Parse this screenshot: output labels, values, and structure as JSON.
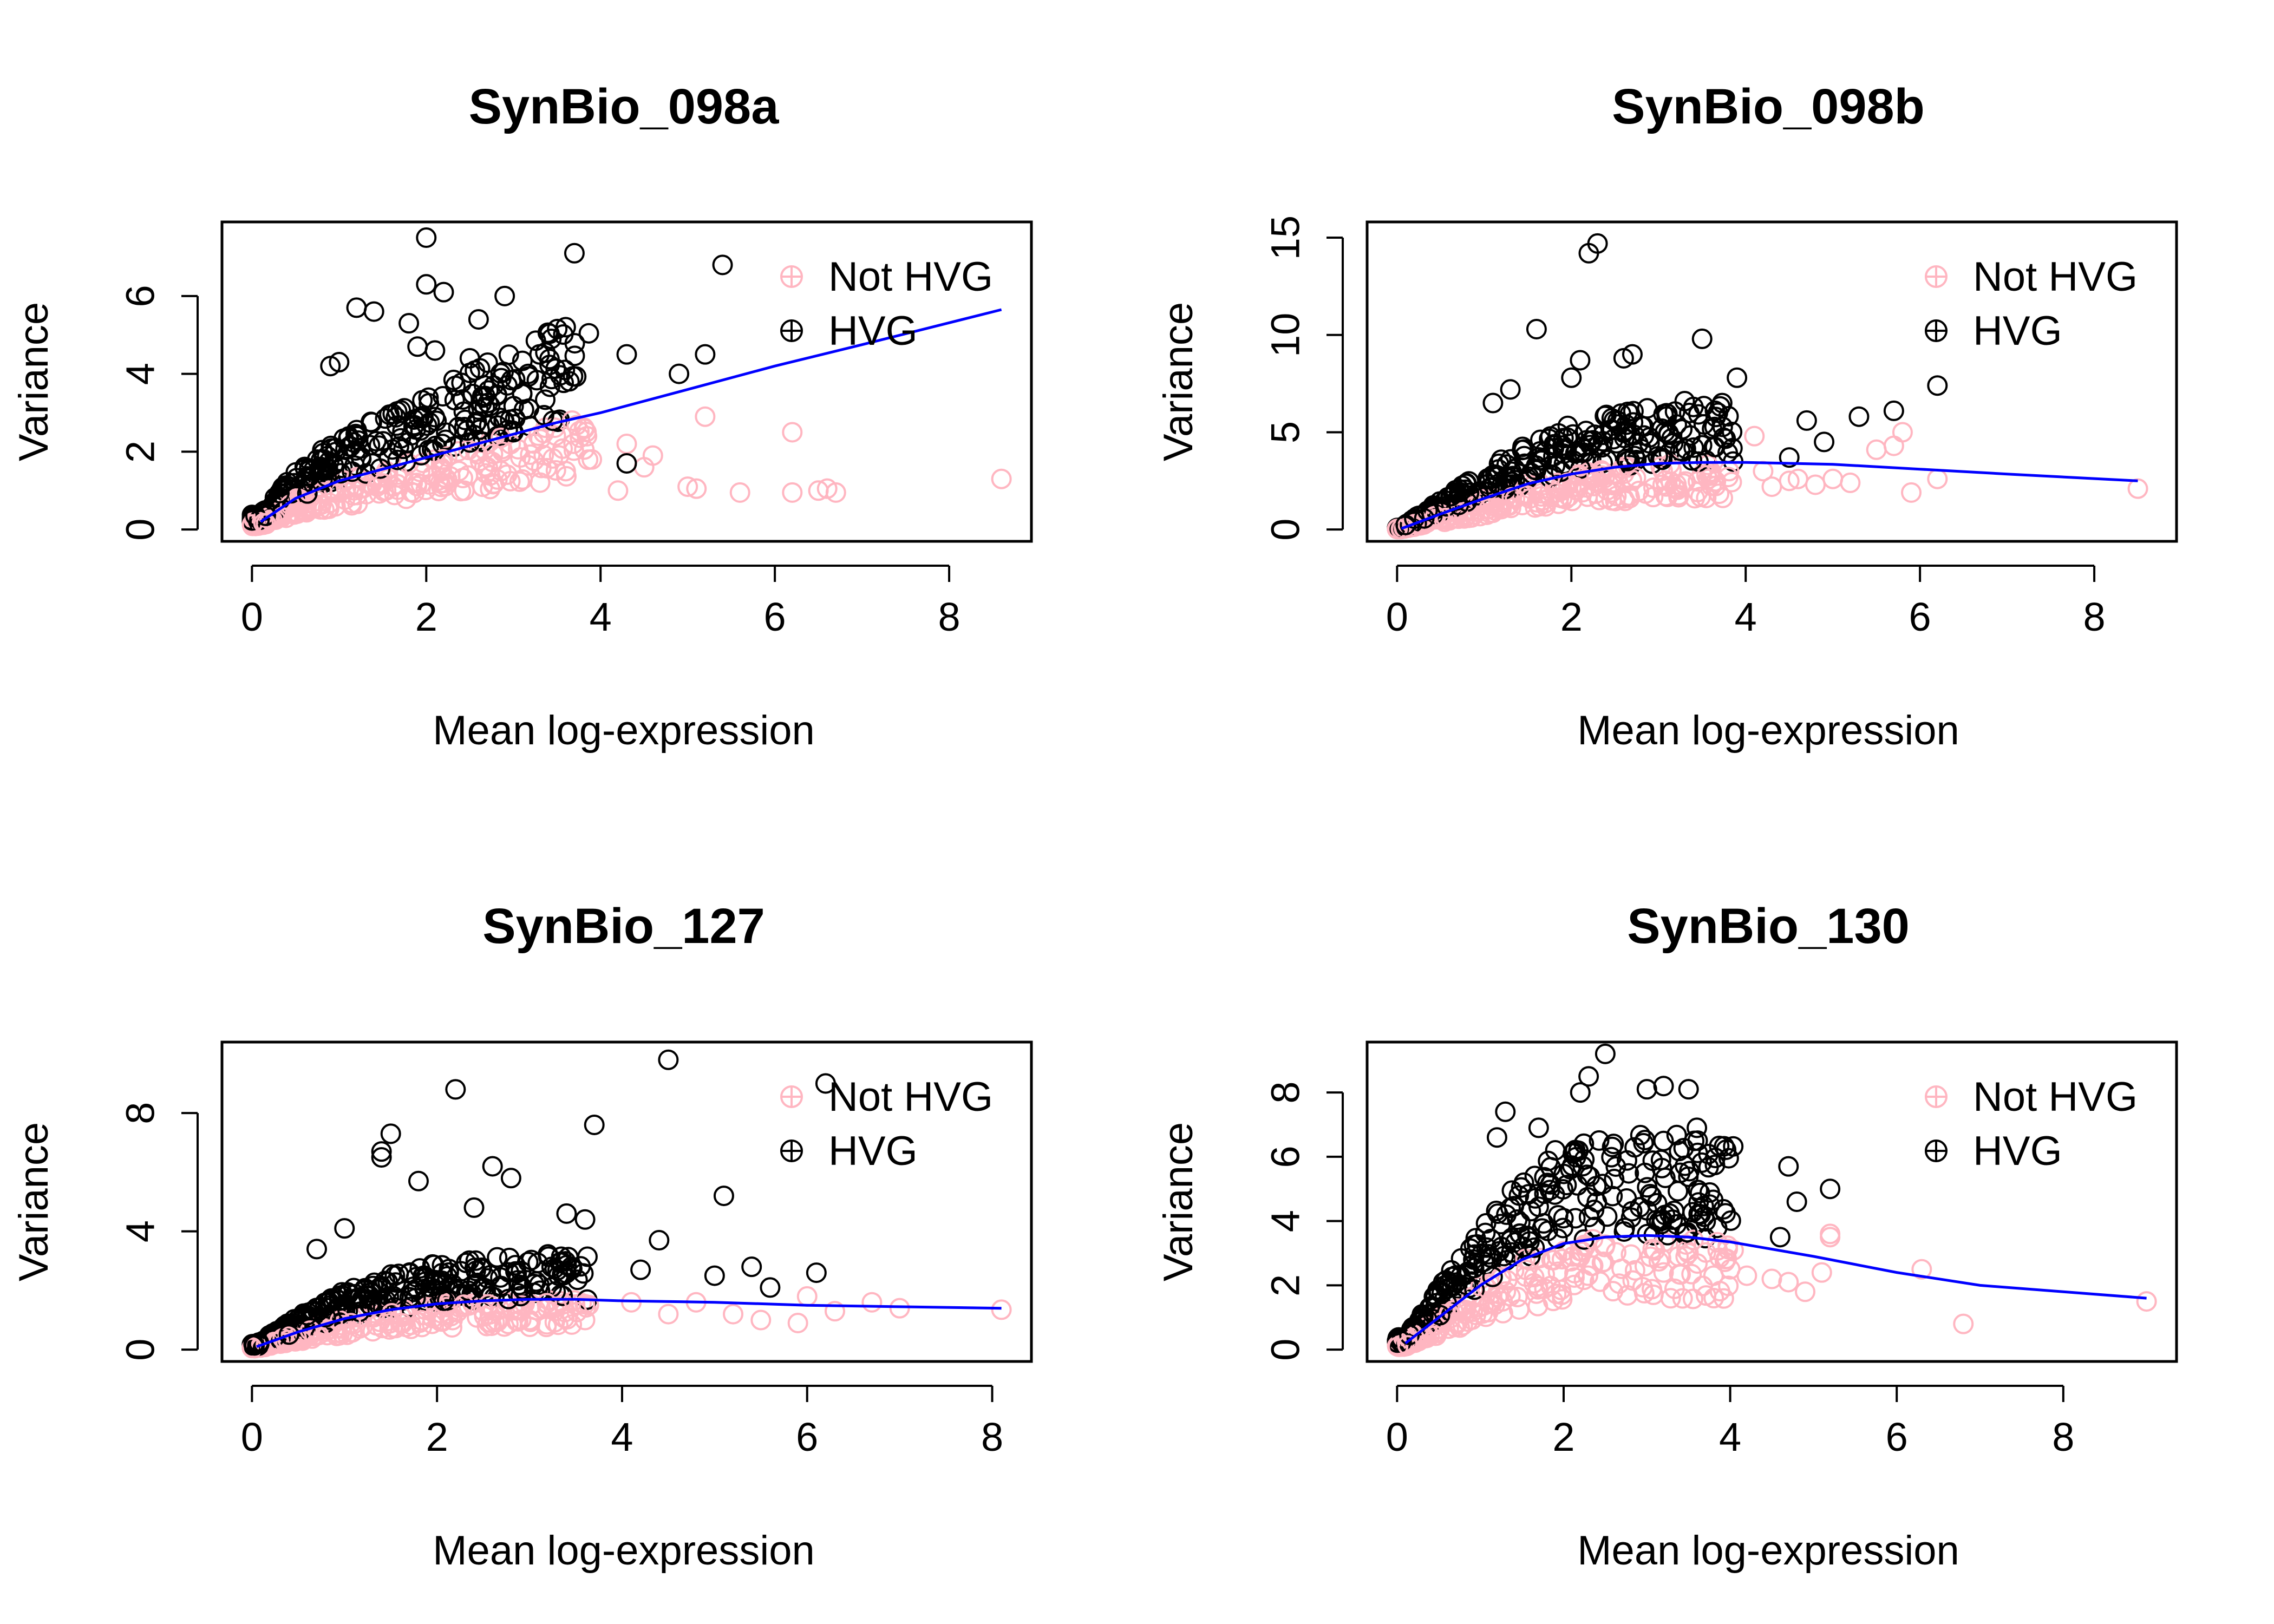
{
  "figure": {
    "background": "#ffffff"
  },
  "chart_data": [
    {
      "type": "scatter",
      "title": "SynBio_098a",
      "xlabel": "Mean log-expression",
      "ylabel": "Variance",
      "xlim": [
        0,
        8.6
      ],
      "ylim": [
        0,
        7.6
      ],
      "xticks": [
        0,
        2,
        4,
        6,
        8
      ],
      "yticks": [
        0,
        2,
        4,
        6
      ],
      "legend": {
        "position": "top-right",
        "entries": [
          "Not HVG",
          "HVG"
        ]
      },
      "colors": {
        "not_hvg": "#ffb6c1",
        "hvg": "#000000",
        "trend": "#0000ff"
      },
      "trend": {
        "x": [
          0.1,
          0.5,
          1,
          1.5,
          2,
          2.5,
          3,
          3.5,
          4,
          5,
          6,
          7,
          8.6
        ],
        "y": [
          0.2,
          0.8,
          1.25,
          1.55,
          1.85,
          2.15,
          2.45,
          2.75,
          3.0,
          3.6,
          4.2,
          4.75,
          5.65
        ]
      },
      "series": [
        {
          "name": "Not HVG",
          "x": [
            4.2,
            4.5,
            5.0,
            5.1,
            5.6,
            6.2,
            6.2,
            6.5,
            6.6,
            6.7,
            8.6,
            4.6,
            3.9,
            5.2,
            4.3,
            3.6
          ],
          "y": [
            1.0,
            1.6,
            1.1,
            1.05,
            0.95,
            2.5,
            0.95,
            1.0,
            1.05,
            0.95,
            1.3,
            1.9,
            1.8,
            2.9,
            2.2,
            1.5
          ]
        },
        {
          "name": "HVG",
          "x": [
            2.0,
            3.7,
            5.4,
            2.0,
            2.2,
            2.9,
            1.2,
            1.4,
            1.8,
            1.9,
            2.1,
            2.5,
            1.0,
            0.9,
            3.3,
            3.6,
            2.6,
            4.3,
            5.2,
            4.9,
            4.3,
            3.1,
            3.0
          ],
          "y": [
            7.5,
            7.1,
            6.8,
            6.3,
            6.1,
            6.0,
            5.7,
            5.6,
            5.3,
            4.7,
            4.6,
            4.4,
            4.3,
            4.2,
            4.5,
            5.2,
            5.4,
            4.5,
            4.5,
            4.0,
            1.7,
            3.5,
            2.5
          ]
        }
      ]
    },
    {
      "type": "scatter",
      "title": "SynBio_098b",
      "xlabel": "Mean log-expression",
      "ylabel": "Variance",
      "xlim": [
        0,
        8.6
      ],
      "ylim": [
        0,
        15.2
      ],
      "xticks": [
        0,
        2,
        4,
        6,
        8
      ],
      "yticks": [
        0,
        5,
        10,
        15
      ],
      "legend": {
        "position": "top-right",
        "entries": [
          "Not HVG",
          "HVG"
        ]
      },
      "colors": {
        "not_hvg": "#ffb6c1",
        "hvg": "#000000",
        "trend": "#0000ff"
      },
      "trend": {
        "x": [
          0.05,
          0.5,
          1,
          1.5,
          2,
          2.5,
          3,
          3.5,
          4,
          5,
          6,
          7,
          8.5
        ],
        "y": [
          0.05,
          0.8,
          1.6,
          2.35,
          2.85,
          3.2,
          3.4,
          3.45,
          3.45,
          3.35,
          3.1,
          2.85,
          2.5
        ]
      },
      "series": [
        {
          "name": "Not HVG",
          "x": [
            4.2,
            4.5,
            4.8,
            5.0,
            5.2,
            5.5,
            5.7,
            5.8,
            5.9,
            6.2,
            8.5,
            3.8,
            4.1,
            4.3,
            4.6
          ],
          "y": [
            3.0,
            2.5,
            2.3,
            2.6,
            2.4,
            4.1,
            4.3,
            5.0,
            1.9,
            2.6,
            2.1,
            2.7,
            4.8,
            2.2,
            2.6
          ]
        },
        {
          "name": "HVG",
          "x": [
            2.2,
            2.3,
            1.6,
            2.6,
            2.7,
            3.5,
            3.9,
            6.2,
            5.7,
            5.3,
            4.7,
            3.3,
            3.4,
            2.1,
            1.3,
            1.1,
            2.0,
            4.9,
            4.5
          ],
          "y": [
            14.2,
            14.7,
            10.3,
            8.8,
            9.0,
            9.8,
            7.8,
            7.4,
            6.1,
            5.8,
            5.6,
            6.6,
            6.3,
            8.7,
            7.2,
            6.5,
            7.8,
            4.5,
            3.7
          ]
        }
      ]
    },
    {
      "type": "scatter",
      "title": "SynBio_127",
      "xlabel": "Mean log-expression",
      "ylabel": "Variance",
      "xlim": [
        0,
        8.1
      ],
      "ylim": [
        0,
        10
      ],
      "xticks": [
        0,
        2,
        4,
        6,
        8
      ],
      "yticks": [
        0,
        4,
        8
      ],
      "legend": {
        "position": "top-right",
        "entries": [
          "Not HVG",
          "HVG"
        ]
      },
      "colors": {
        "not_hvg": "#ffb6c1",
        "hvg": "#000000",
        "trend": "#0000ff"
      },
      "trend": {
        "x": [
          0.05,
          0.5,
          1,
          1.5,
          2,
          2.5,
          3,
          3.5,
          4,
          5,
          6,
          7,
          8.1
        ],
        "y": [
          0.1,
          0.6,
          1.05,
          1.35,
          1.55,
          1.65,
          1.7,
          1.7,
          1.65,
          1.6,
          1.5,
          1.45,
          1.4
        ]
      },
      "series": [
        {
          "name": "Not HVG",
          "x": [
            4.5,
            4.8,
            5.2,
            5.5,
            5.9,
            6.0,
            6.3,
            6.7,
            7.0,
            8.1,
            3.6,
            4.1,
            2.5,
            3.0
          ],
          "y": [
            1.2,
            1.6,
            1.2,
            1.0,
            0.9,
            1.8,
            1.3,
            1.6,
            1.4,
            1.35,
            1.0,
            1.6,
            1.3,
            1.0
          ]
        },
        {
          "name": "HVG",
          "x": [
            4.5,
            6.2,
            2.2,
            3.7,
            1.5,
            1.4,
            1.4,
            1.8,
            2.6,
            2.8,
            5.1,
            4.4,
            4.2,
            5.0,
            5.4,
            6.1,
            5.6,
            3.4,
            3.6,
            2.4,
            1.0,
            0.7
          ],
          "y": [
            9.8,
            9.0,
            8.8,
            7.6,
            7.3,
            6.7,
            6.5,
            5.7,
            6.2,
            5.8,
            5.2,
            3.7,
            2.7,
            2.5,
            2.8,
            2.6,
            2.1,
            4.6,
            4.4,
            4.8,
            4.1,
            3.4
          ]
        }
      ]
    },
    {
      "type": "scatter",
      "title": "SynBio_130",
      "xlabel": "Mean log-expression",
      "ylabel": "Variance",
      "xlim": [
        0,
        9
      ],
      "ylim": [
        0,
        9.2
      ],
      "xticks": [
        0,
        2,
        4,
        6,
        8
      ],
      "yticks": [
        0,
        2,
        4,
        6,
        8
      ],
      "legend": {
        "position": "top-right",
        "entries": [
          "Not HVG",
          "HVG"
        ]
      },
      "colors": {
        "not_hvg": "#ffb6c1",
        "hvg": "#000000",
        "trend": "#0000ff"
      },
      "trend": {
        "x": [
          0.1,
          0.5,
          1,
          1.5,
          2,
          2.5,
          3,
          3.5,
          4,
          5,
          6,
          7,
          8,
          9
        ],
        "y": [
          0.2,
          1.0,
          2.0,
          2.8,
          3.3,
          3.5,
          3.55,
          3.5,
          3.35,
          2.9,
          2.4,
          2.0,
          1.8,
          1.6
        ]
      },
      "series": [
        {
          "name": "Not HVG",
          "x": [
            3.8,
            4.0,
            4.2,
            4.5,
            4.7,
            4.9,
            5.1,
            5.2,
            5.2,
            6.3,
            6.8,
            9.0,
            3.2,
            3.5
          ],
          "y": [
            2.3,
            2.5,
            2.3,
            2.2,
            2.1,
            1.8,
            2.4,
            3.5,
            3.6,
            2.5,
            0.8,
            1.5,
            2.4,
            3.0
          ]
        },
        {
          "name": "HVG",
          "x": [
            2.5,
            2.3,
            3.2,
            3.0,
            3.5,
            2.2,
            1.3,
            1.7,
            2.6,
            3.4,
            4.7,
            4.8,
            5.2,
            3.6,
            4.6,
            1.2,
            1.9
          ],
          "y": [
            9.2,
            8.5,
            8.2,
            8.1,
            8.1,
            8.0,
            7.4,
            6.9,
            6.4,
            5.5,
            5.7,
            4.6,
            5.0,
            6.9,
            3.5,
            6.6,
            6.2
          ]
        }
      ]
    }
  ]
}
